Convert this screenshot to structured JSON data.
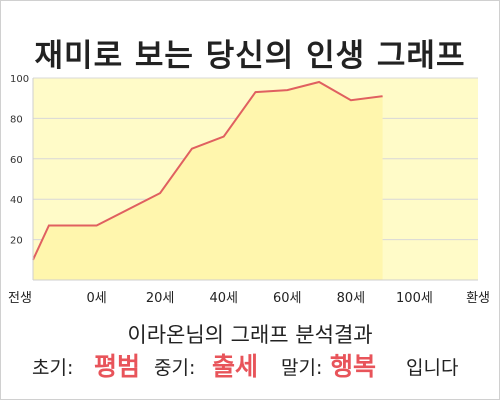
{
  "header": {
    "title": "재미로 보는 당신의 인생 그래프"
  },
  "chart_data": {
    "type": "area",
    "x": [
      0,
      5,
      20,
      40,
      50,
      60,
      70,
      80,
      90,
      100,
      110
    ],
    "values": [
      10,
      27,
      27,
      43,
      65,
      71,
      93,
      94,
      98,
      89,
      91
    ],
    "xticks": [
      {
        "value": 0,
        "label": "전생"
      },
      {
        "value": 20,
        "label": "0세"
      },
      {
        "value": 40,
        "label": "20세"
      },
      {
        "value": 60,
        "label": "40세"
      },
      {
        "value": 80,
        "label": "60세"
      },
      {
        "value": 100,
        "label": "80세"
      },
      {
        "value": 120,
        "label": "100세"
      },
      {
        "value": 140,
        "label": "환생"
      }
    ],
    "yticks": [
      20,
      40,
      60,
      80,
      100
    ],
    "xlim": [
      0,
      140
    ],
    "ylim": [
      0,
      100
    ],
    "grid": true,
    "line_color": "#e06060",
    "fill_color": "#fffbc8"
  },
  "result": {
    "subtitle": "이라온님의 그래프 분석결과",
    "early_label": "초기:",
    "early_value": "평범",
    "mid_label": "중기:",
    "mid_value": "출세",
    "late_label": "말기:",
    "late_value": "행복",
    "ending": "입니다"
  }
}
